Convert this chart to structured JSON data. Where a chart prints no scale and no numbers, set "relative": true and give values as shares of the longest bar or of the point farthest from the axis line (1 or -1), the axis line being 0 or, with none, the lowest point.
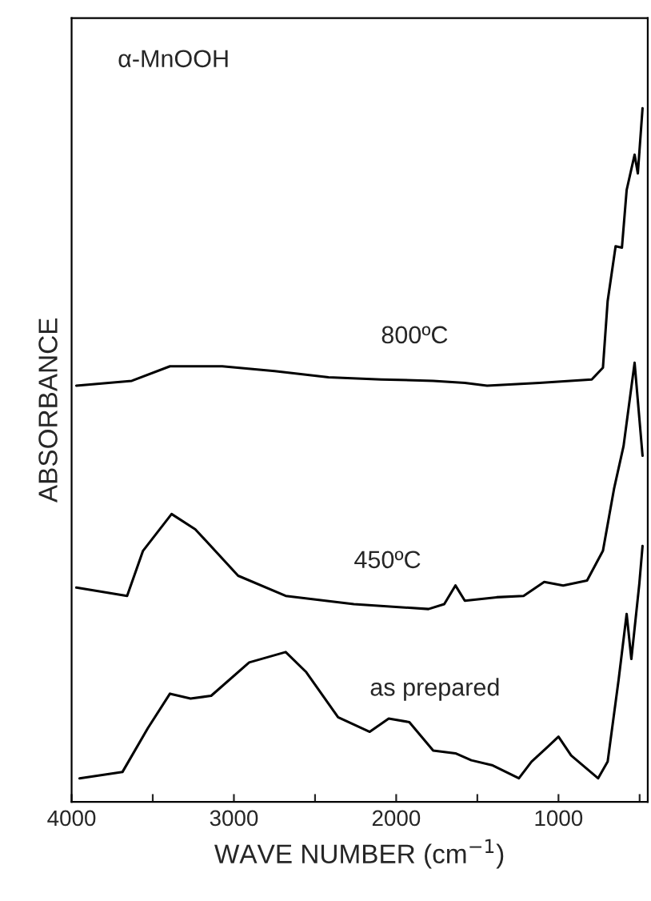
{
  "chart_data": {
    "type": "line",
    "relative": true,
    "xlabel": "WAVE NUMBER (cm$^{−1}$)",
    "ylabel": "ABSORBANCE",
    "annotations": [
      "α-MnOOH"
    ],
    "xlim": [
      4000,
      450
    ],
    "xticks": [
      4000,
      {
        "value": 3500,
        "label": null
      },
      3000,
      {
        "value": 2500,
        "label": null
      },
      2000,
      {
        "value": 1500,
        "label": null
      },
      1000,
      {
        "value": 500,
        "label": null
      }
    ],
    "legend": false,
    "grid": false,
    "marker": "none",
    "line_style": "solid",
    "series": [
      {
        "name": "800ºC",
        "color": "#000000",
        "x": [
          3971,
          3629,
          3394,
          3072,
          2749,
          2417,
          2094,
          1772,
          1577,
          1440,
          1117,
          795,
          726,
          697,
          648,
          609,
          580,
          531,
          511,
          482
        ],
        "values": [
          0.6,
          0.607,
          0.628,
          0.628,
          0.621,
          0.612,
          0.609,
          0.607,
          0.604,
          0.6,
          0.604,
          0.609,
          0.626,
          0.722,
          0.801,
          0.799,
          0.882,
          0.933,
          0.906,
          1.0
        ]
      },
      {
        "name": "450ºC",
        "color": "#000000",
        "x": [
          3971,
          3658,
          3560,
          3384,
          3238,
          2974,
          2681,
          2261,
          1801,
          1704,
          1635,
          1577,
          1381,
          1215,
          1088,
          971,
          824,
          726,
          658,
          599,
          531,
          482
        ],
        "values": [
          0.309,
          0.297,
          0.362,
          0.415,
          0.393,
          0.326,
          0.297,
          0.285,
          0.278,
          0.285,
          0.312,
          0.29,
          0.295,
          0.297,
          0.317,
          0.312,
          0.319,
          0.362,
          0.451,
          0.513,
          0.633,
          0.499
        ]
      },
      {
        "name": "as prepared",
        "color": "#000000",
        "x": [
          3951,
          3687,
          3531,
          3394,
          3267,
          3140,
          2906,
          2681,
          2554,
          2358,
          2163,
          2046,
          1919,
          1772,
          1635,
          1537,
          1410,
          1244,
          1166,
          1068,
          1000,
          922,
          756,
          697,
          629,
          580,
          551,
          502,
          482
        ],
        "values": [
          0.034,
          0.043,
          0.106,
          0.156,
          0.149,
          0.153,
          0.201,
          0.216,
          0.187,
          0.122,
          0.101,
          0.12,
          0.115,
          0.074,
          0.07,
          0.06,
          0.053,
          0.034,
          0.058,
          0.079,
          0.094,
          0.067,
          0.034,
          0.058,
          0.177,
          0.271,
          0.206,
          0.314,
          0.369
        ]
      }
    ]
  }
}
